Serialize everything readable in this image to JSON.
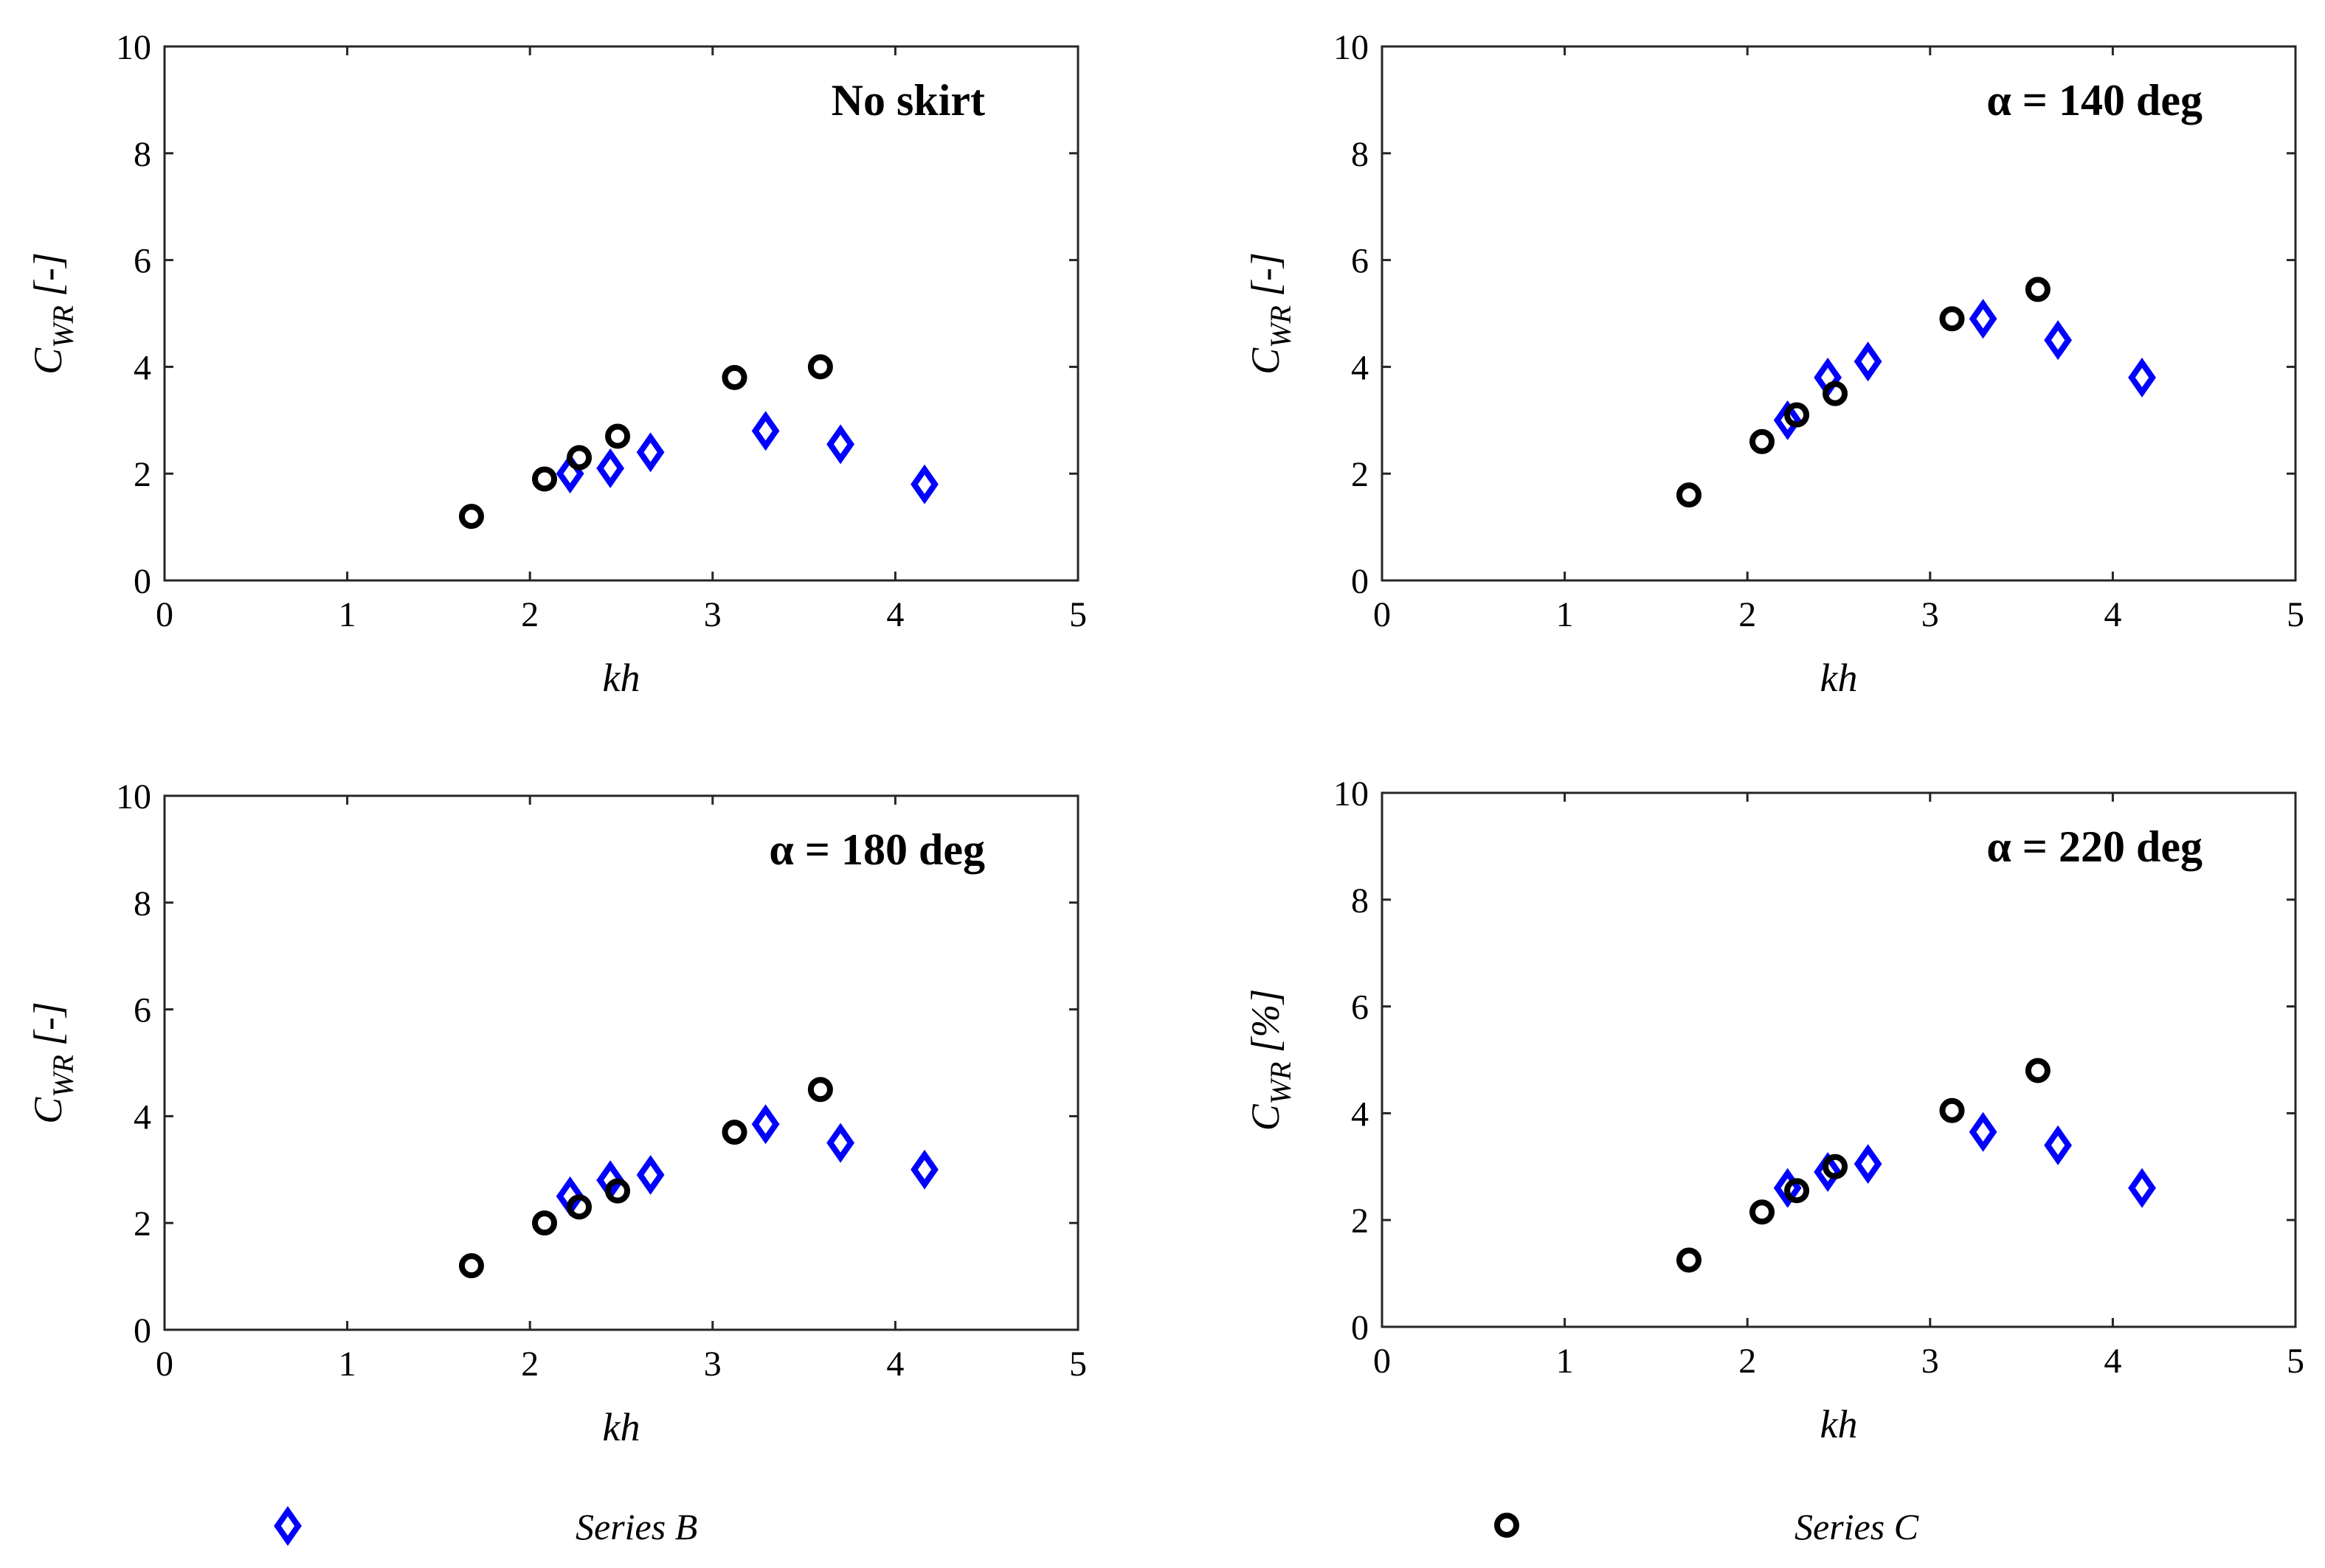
{
  "chart_data": [
    {
      "type": "scatter",
      "title": "No skirt",
      "xlabel": "kh",
      "ylabel": "[-]",
      "ylabel_symbol": "C",
      "ylabel_subscript": "WR",
      "xlim": [
        0,
        5
      ],
      "ylim": [
        0,
        10
      ],
      "xticks": [
        0,
        1,
        2,
        3,
        4,
        5
      ],
      "yticks": [
        0,
        2,
        4,
        6,
        8,
        10
      ],
      "grid": false,
      "series": [
        {
          "name": "Series B",
          "marker": "diamond",
          "color": "#0000ff",
          "x": [
            2.22,
            2.44,
            2.66,
            3.29,
            3.7,
            4.16
          ],
          "y": [
            2.0,
            2.1,
            2.4,
            2.8,
            2.55,
            1.8
          ]
        },
        {
          "name": "Series C",
          "marker": "circle",
          "color": "#000000",
          "x": [
            1.68,
            2.08,
            2.27,
            2.48,
            3.12,
            3.59
          ],
          "y": [
            1.2,
            1.9,
            2.3,
            2.7,
            3.8,
            4.0
          ]
        }
      ]
    },
    {
      "type": "scatter",
      "title": "α = 140 deg",
      "xlabel": "kh",
      "ylabel": "[-]",
      "ylabel_symbol": "C",
      "ylabel_subscript": "WR",
      "xlim": [
        0,
        5
      ],
      "ylim": [
        0,
        10
      ],
      "xticks": [
        0,
        1,
        2,
        3,
        4,
        5
      ],
      "yticks": [
        0,
        2,
        4,
        6,
        8,
        10
      ],
      "grid": false,
      "series": [
        {
          "name": "Series B",
          "marker": "diamond",
          "color": "#0000ff",
          "x": [
            2.22,
            2.44,
            2.66,
            3.29,
            3.7,
            4.16
          ],
          "y": [
            3.0,
            3.8,
            4.1,
            4.9,
            4.5,
            3.8
          ]
        },
        {
          "name": "Series C",
          "marker": "circle",
          "color": "#000000",
          "x": [
            1.68,
            2.08,
            2.27,
            2.48,
            3.12,
            3.59
          ],
          "y": [
            1.6,
            2.6,
            3.1,
            3.5,
            4.9,
            5.45
          ]
        }
      ]
    },
    {
      "type": "scatter",
      "title": "α = 180 deg",
      "xlabel": "kh",
      "ylabel": "[-]",
      "ylabel_symbol": "C",
      "ylabel_subscript": "WR",
      "xlim": [
        0,
        5
      ],
      "ylim": [
        0,
        10
      ],
      "xticks": [
        0,
        1,
        2,
        3,
        4,
        5
      ],
      "yticks": [
        0,
        2,
        4,
        6,
        8,
        10
      ],
      "grid": false,
      "series": [
        {
          "name": "Series B",
          "marker": "diamond",
          "color": "#0000ff",
          "x": [
            2.22,
            2.44,
            2.66,
            3.29,
            3.7,
            4.16
          ],
          "y": [
            2.5,
            2.8,
            2.9,
            3.85,
            3.5,
            3.0
          ]
        },
        {
          "name": "Series C",
          "marker": "circle",
          "color": "#000000",
          "x": [
            1.68,
            2.08,
            2.27,
            2.48,
            3.12,
            3.59
          ],
          "y": [
            1.2,
            2.0,
            2.3,
            2.6,
            3.7,
            4.5
          ]
        }
      ]
    },
    {
      "type": "scatter",
      "title": "α = 220 deg",
      "xlabel": "kh",
      "ylabel": "[%]",
      "ylabel_symbol": "C",
      "ylabel_subscript": "WR",
      "xlim": [
        0,
        5
      ],
      "ylim": [
        0,
        10
      ],
      "xticks": [
        0,
        1,
        2,
        3,
        4,
        5
      ],
      "yticks": [
        0,
        2,
        4,
        6,
        8,
        10
      ],
      "grid": false,
      "series": [
        {
          "name": "Series B",
          "marker": "diamond",
          "color": "#0000ff",
          "x": [
            2.22,
            2.44,
            2.66,
            3.29,
            3.7,
            4.16
          ],
          "y": [
            2.6,
            2.9,
            3.05,
            3.65,
            3.4,
            2.6
          ]
        },
        {
          "name": "Series C",
          "marker": "circle",
          "color": "#000000",
          "x": [
            1.68,
            2.08,
            2.27,
            2.48,
            3.12,
            3.59
          ],
          "y": [
            1.25,
            2.15,
            2.55,
            3.0,
            4.05,
            4.8
          ]
        }
      ]
    }
  ],
  "legend": {
    "placement": "bottom",
    "items": [
      {
        "label": "Series B",
        "marker": "diamond",
        "color": "#0000ff"
      },
      {
        "label": "Series C",
        "marker": "circle",
        "color": "#000000"
      }
    ]
  }
}
